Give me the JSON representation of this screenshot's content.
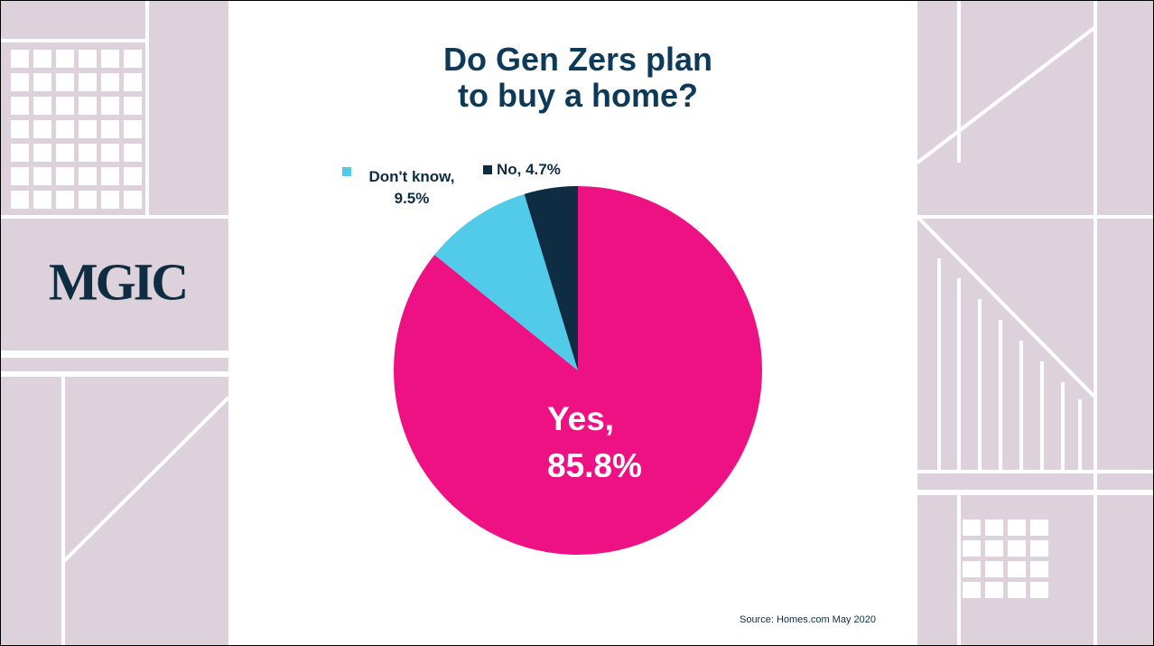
{
  "chart_data": {
    "type": "pie",
    "title": "Do Gen Zers plan to buy a home?",
    "categories": [
      "Yes",
      "Don't know",
      "No"
    ],
    "values": [
      85.8,
      9.5,
      4.7
    ],
    "value_labels": [
      "Yes, 85.8%",
      "Don't know, 9.5%",
      "No, 4.7%"
    ],
    "colors": [
      "#ed1183",
      "#52cbea",
      "#0e2c42"
    ],
    "start": "top",
    "direction": "clockwise"
  },
  "logo": "MGIC",
  "source": "Source: Homes.com May 2020"
}
